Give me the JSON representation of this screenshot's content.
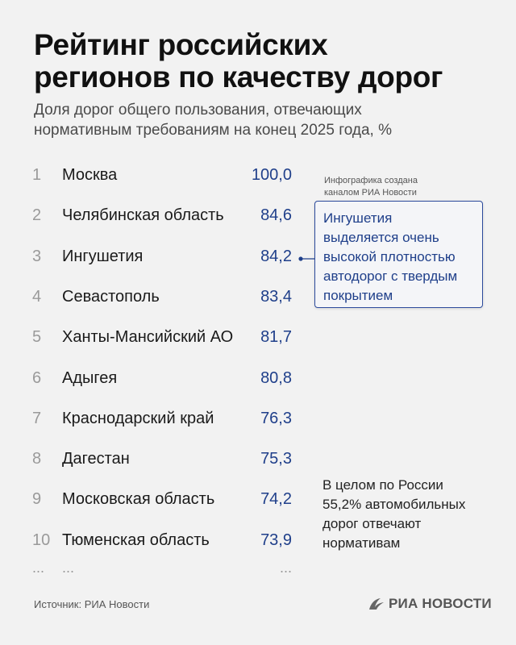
{
  "title_lines": [
    "Рейтинг российских",
    "регионов по качеству дорог"
  ],
  "subtitle_lines": [
    "Доля дорог общего пользования, отвечающих",
    "нормативным требованиям на конец 2025 года, %"
  ],
  "chart_data": {
    "type": "table",
    "columns": [
      "rank",
      "region",
      "value"
    ],
    "rows": [
      {
        "rank": "1",
        "region": "Москва",
        "value": "100,0"
      },
      {
        "rank": "2",
        "region": "Челябинская область",
        "value": "84,6"
      },
      {
        "rank": "3",
        "region": "Ингушетия",
        "value": "84,2"
      },
      {
        "rank": "4",
        "region": "Севастополь",
        "value": "83,4"
      },
      {
        "rank": "5",
        "region": "Ханты-Мансийский АО",
        "value": "81,7"
      },
      {
        "rank": "6",
        "region": "Адыгея",
        "value": "80,8"
      },
      {
        "rank": "7",
        "region": "Краснодарский край",
        "value": "76,3"
      },
      {
        "rank": "8",
        "region": "Дагестан",
        "value": "75,3"
      },
      {
        "rank": "9",
        "region": "Московская область",
        "value": "74,2"
      },
      {
        "rank": "10",
        "region": "Тюменская область",
        "value": "73,9"
      }
    ],
    "ellipsis": "..."
  },
  "credit_lines": [
    "Инфографика создана",
    "каналом РИА Новости"
  ],
  "callout_lines": [
    "Ингушетия",
    "выделяется очень",
    "высокой плотностью",
    "автодорог с твердым",
    "покрытием"
  ],
  "note_lines": [
    "В целом по России",
    "55,2% автомобильных",
    "дорог отвечают",
    "нормативам"
  ],
  "source": "Источник: РИА Новости",
  "logo_text": "РИА НОВОСТИ",
  "colors": {
    "accent": "#1f3f8a",
    "rank": "#9a9a9a",
    "background": "#f2f2f2"
  }
}
